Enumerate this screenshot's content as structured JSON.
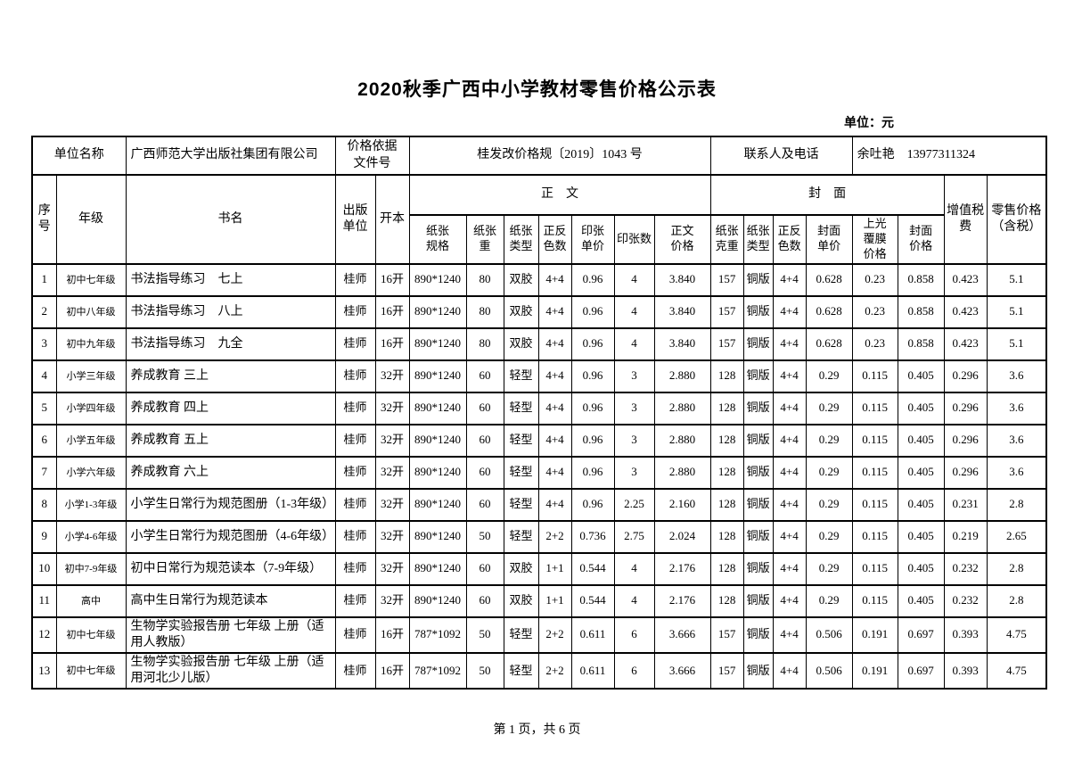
{
  "page": {
    "title": "2020秋季广西中小学教材零售价格公示表",
    "unit_note": "单位：元",
    "footer": "第 1 页，共 6 页"
  },
  "info": {
    "unit_name_label": "单位名称",
    "unit_name": "广西师范大学出版社集团有限公司",
    "price_basis_label": "价格依据\n文件号",
    "price_basis_value": "桂发改价格规〔2019〕1043 号",
    "contact_label": "联系人及电话",
    "contact_value": "余吐艳　13977311324"
  },
  "table": {
    "headers": {
      "seq": "序\n号",
      "grade": "年级",
      "book": "书名",
      "publisher": "出版\n单位",
      "format": "开本",
      "body_group": "正　文",
      "cover_group": "封　面",
      "body_cols": [
        "纸张\n规格",
        "纸张\n重",
        "纸张\n类型",
        "正反\n色数",
        "印张\n单价",
        "印张数",
        "正文\n价格"
      ],
      "cover_cols": [
        "纸张\n克重",
        "纸张\n类型",
        "正反\n色数",
        "封面\n单价",
        "上光\n覆膜\n价格",
        "封面\n价格"
      ],
      "vat": "增值税\n费",
      "retail": "零售价格\n（含税）"
    },
    "rows": [
      [
        "1",
        "初中七年级",
        "书法指导练习　七上",
        "桂师",
        "16开",
        "890*1240",
        "80",
        "双胶",
        "4+4",
        "0.96",
        "4",
        "3.840",
        "157",
        "铜版",
        "4+4",
        "0.628",
        "0.23",
        "0.858",
        "0.423",
        "5.1"
      ],
      [
        "2",
        "初中八年级",
        "书法指导练习　八上",
        "桂师",
        "16开",
        "890*1240",
        "80",
        "双胶",
        "4+4",
        "0.96",
        "4",
        "3.840",
        "157",
        "铜版",
        "4+4",
        "0.628",
        "0.23",
        "0.858",
        "0.423",
        "5.1"
      ],
      [
        "3",
        "初中九年级",
        "书法指导练习　九全",
        "桂师",
        "16开",
        "890*1240",
        "80",
        "双胶",
        "4+4",
        "0.96",
        "4",
        "3.840",
        "157",
        "铜版",
        "4+4",
        "0.628",
        "0.23",
        "0.858",
        "0.423",
        "5.1"
      ],
      [
        "4",
        "小学三年级",
        "养成教育 三上",
        "桂师",
        "32开",
        "890*1240",
        "60",
        "轻型",
        "4+4",
        "0.96",
        "3",
        "2.880",
        "128",
        "铜版",
        "4+4",
        "0.29",
        "0.115",
        "0.405",
        "0.296",
        "3.6"
      ],
      [
        "5",
        "小学四年级",
        "养成教育 四上",
        "桂师",
        "32开",
        "890*1240",
        "60",
        "轻型",
        "4+4",
        "0.96",
        "3",
        "2.880",
        "128",
        "铜版",
        "4+4",
        "0.29",
        "0.115",
        "0.405",
        "0.296",
        "3.6"
      ],
      [
        "6",
        "小学五年级",
        "养成教育 五上",
        "桂师",
        "32开",
        "890*1240",
        "60",
        "轻型",
        "4+4",
        "0.96",
        "3",
        "2.880",
        "128",
        "铜版",
        "4+4",
        "0.29",
        "0.115",
        "0.405",
        "0.296",
        "3.6"
      ],
      [
        "7",
        "小学六年级",
        "养成教育 六上",
        "桂师",
        "32开",
        "890*1240",
        "60",
        "轻型",
        "4+4",
        "0.96",
        "3",
        "2.880",
        "128",
        "铜版",
        "4+4",
        "0.29",
        "0.115",
        "0.405",
        "0.296",
        "3.6"
      ],
      [
        "8",
        "小学1-3年级",
        "小学生日常行为规范图册（1-3年级）",
        "桂师",
        "32开",
        "890*1240",
        "60",
        "轻型",
        "4+4",
        "0.96",
        "2.25",
        "2.160",
        "128",
        "铜版",
        "4+4",
        "0.29",
        "0.115",
        "0.405",
        "0.231",
        "2.8"
      ],
      [
        "9",
        "小学4-6年级",
        "小学生日常行为规范图册（4-6年级）",
        "桂师",
        "32开",
        "890*1240",
        "50",
        "轻型",
        "2+2",
        "0.736",
        "2.75",
        "2.024",
        "128",
        "铜版",
        "4+4",
        "0.29",
        "0.115",
        "0.405",
        "0.219",
        "2.65"
      ],
      [
        "10",
        "初中7-9年级",
        "初中日常行为规范读本（7-9年级）",
        "桂师",
        "32开",
        "890*1240",
        "60",
        "双胶",
        "1+1",
        "0.544",
        "4",
        "2.176",
        "128",
        "铜版",
        "4+4",
        "0.29",
        "0.115",
        "0.405",
        "0.232",
        "2.8"
      ],
      [
        "11",
        "高中",
        "高中生日常行为规范读本",
        "桂师",
        "32开",
        "890*1240",
        "60",
        "双胶",
        "1+1",
        "0.544",
        "4",
        "2.176",
        "128",
        "铜版",
        "4+4",
        "0.29",
        "0.115",
        "0.405",
        "0.232",
        "2.8"
      ],
      [
        "12",
        "初中七年级",
        "生物学实验报告册 七年级 上册（适用人教版）",
        "桂师",
        "16开",
        "787*1092",
        "50",
        "轻型",
        "2+2",
        "0.611",
        "6",
        "3.666",
        "157",
        "铜版",
        "4+4",
        "0.506",
        "0.191",
        "0.697",
        "0.393",
        "4.75"
      ],
      [
        "13",
        "初中七年级",
        "生物学实验报告册 七年级 上册（适用河北少儿版）",
        "桂师",
        "16开",
        "787*1092",
        "50",
        "轻型",
        "2+2",
        "0.611",
        "6",
        "3.666",
        "157",
        "铜版",
        "4+4",
        "0.506",
        "0.191",
        "0.697",
        "0.393",
        "4.75"
      ]
    ]
  }
}
